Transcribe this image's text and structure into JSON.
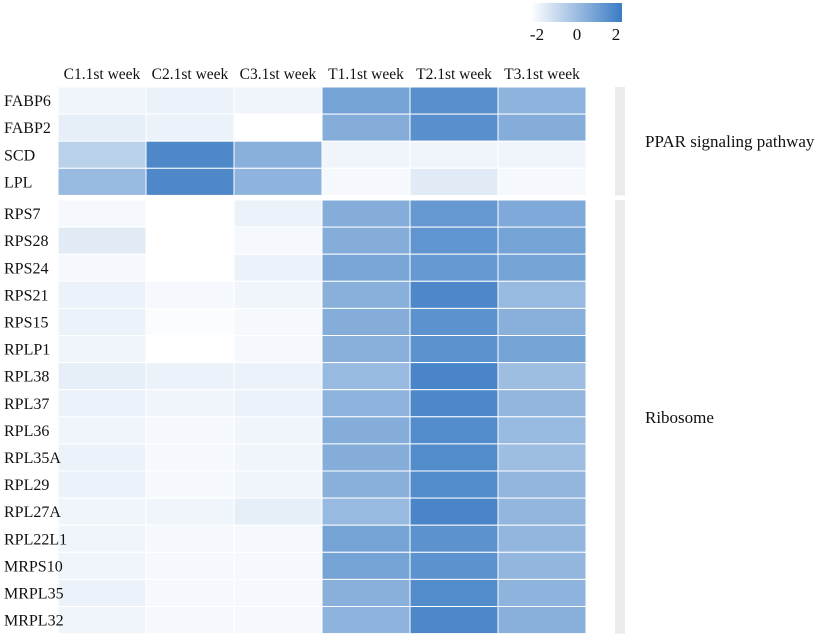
{
  "chart_data": {
    "type": "heatmap",
    "columns": [
      "C1.1st week",
      "C2.1st week",
      "C3.1st week",
      "T1.1st week",
      "T2.1st week",
      "T3.1st week"
    ],
    "groups": [
      {
        "name": "PPAR signaling pathway",
        "rows": [
          "FABP6",
          "FABP2",
          "SCD",
          "LPL"
        ],
        "values": [
          [
            -1.7,
            -1.6,
            -1.7,
            0.8,
            1.4,
            0.3
          ],
          [
            -1.5,
            -1.6,
            -2.0,
            0.5,
            1.4,
            0.5
          ],
          [
            -0.6,
            1.6,
            0.4,
            -1.7,
            -1.7,
            -1.7
          ],
          [
            0.1,
            1.6,
            0.3,
            -1.8,
            -1.4,
            -1.8
          ]
        ]
      },
      {
        "name": "Ribosome",
        "rows": [
          "RPS7",
          "RPS28",
          "RPS24",
          "RPS21",
          "RPS15",
          "RPLP1",
          "RPL38",
          "RPL37",
          "RPL36",
          "RPL35A",
          "RPL29",
          "RPL27A",
          "RPL22L1",
          "MRPS10",
          "MRPL35",
          "MRPL32"
        ],
        "values": [
          [
            -1.8,
            -2.0,
            -1.6,
            0.5,
            1.1,
            0.6
          ],
          [
            -1.4,
            -2.0,
            -1.8,
            0.5,
            1.2,
            0.8
          ],
          [
            -1.8,
            -2.0,
            -1.6,
            0.7,
            1.1,
            0.8
          ],
          [
            -1.6,
            -1.8,
            -1.7,
            0.4,
            1.6,
            0.1
          ],
          [
            -1.6,
            -1.9,
            -1.8,
            0.5,
            1.3,
            0.4
          ],
          [
            -1.7,
            -2.0,
            -1.8,
            0.4,
            1.3,
            0.8
          ],
          [
            -1.5,
            -1.6,
            -1.6,
            0.1,
            1.7,
            0.0
          ],
          [
            -1.6,
            -1.7,
            -1.6,
            0.3,
            1.6,
            0.2
          ],
          [
            -1.7,
            -1.8,
            -1.7,
            0.5,
            1.5,
            0.1
          ],
          [
            -1.6,
            -1.8,
            -1.7,
            0.5,
            1.5,
            0.0
          ],
          [
            -1.6,
            -1.8,
            -1.7,
            0.4,
            1.5,
            0.2
          ],
          [
            -1.7,
            -1.7,
            -1.5,
            0.1,
            1.7,
            0.2
          ],
          [
            -1.7,
            -1.8,
            -1.8,
            0.8,
            1.3,
            0.2
          ],
          [
            -1.7,
            -1.8,
            -1.8,
            0.8,
            1.3,
            0.2
          ],
          [
            -1.6,
            -1.8,
            -1.8,
            0.4,
            1.5,
            0.3
          ],
          [
            -1.7,
            -1.8,
            -1.8,
            0.3,
            1.6,
            0.4
          ]
        ]
      }
    ],
    "color_scale": {
      "min": -2,
      "max": 2,
      "low_color": "#ffffff",
      "high_color": "#3a7bc3",
      "ticks": [
        "-2",
        "0",
        "2"
      ]
    },
    "group_bar_color": "#ebebeb",
    "grid": true,
    "legend_position": "top-right"
  }
}
